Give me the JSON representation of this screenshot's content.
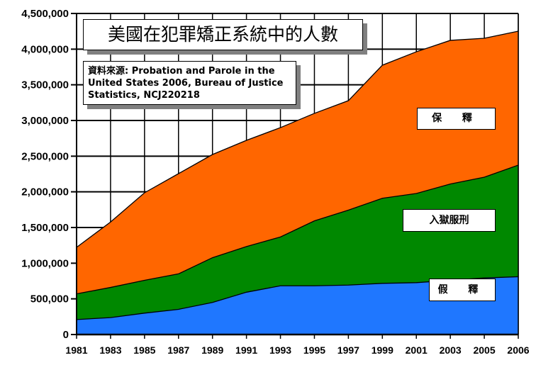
{
  "chart_data": {
    "type": "area",
    "stacked": true,
    "title": "美國在犯罪矯正系統中的人數",
    "source_note": "資料來源: Probation and Parole in the United States 2006, Bureau of Justice Statistics, NCJ220218",
    "categories": [
      "1981",
      "1983",
      "1985",
      "1987",
      "1989",
      "1991",
      "1993",
      "1995",
      "1997",
      "1999",
      "2001",
      "2003",
      "2005",
      "2006"
    ],
    "series": [
      {
        "name": "假 釋",
        "color": "#1f77ff",
        "values": [
          210000,
          237000,
          300000,
          353000,
          450000,
          593000,
          683000,
          683000,
          693000,
          717000,
          727000,
          760000,
          793000,
          810000
        ]
      },
      {
        "name": "入獄服刑",
        "color": "#008800",
        "values": [
          360000,
          423000,
          460000,
          497000,
          627000,
          640000,
          684000,
          910000,
          1050000,
          1193000,
          1250000,
          1350000,
          1412000,
          1564000
        ]
      },
      {
        "name": "保 釋",
        "color": "#ff6600",
        "values": [
          652000,
          917000,
          1227000,
          1405000,
          1446000,
          1489000,
          1533000,
          1507000,
          1535000,
          1865000,
          1986000,
          2013000,
          1947000,
          1878000
        ]
      }
    ],
    "yticks": [
      "0",
      "500,000",
      "1,000,000",
      "1,500,000",
      "2,000,000",
      "2,500,000",
      "3,000,000",
      "3,500,000",
      "4,000,000",
      "4,500,000"
    ],
    "ylim": [
      0,
      4500000
    ],
    "xlabel": "",
    "ylabel": "",
    "grid": true,
    "legend": "inline labels"
  }
}
